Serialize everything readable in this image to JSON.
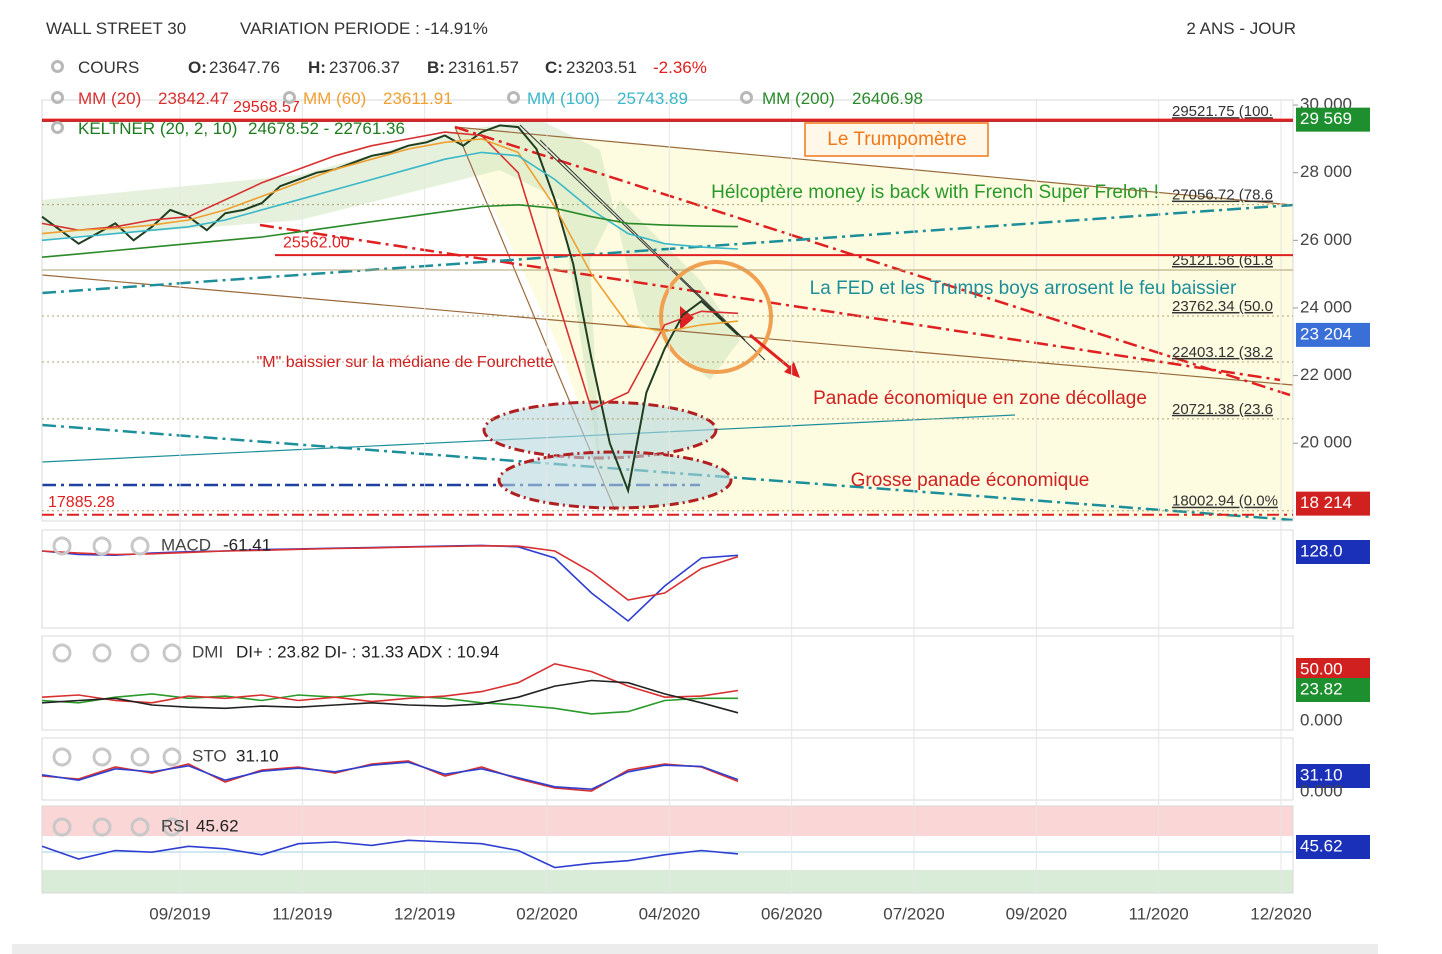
{
  "header": {
    "title": "WALL STREET 30",
    "variation": "VARIATION PERIODE : -14.91%",
    "period": "2 ANS - JOUR"
  },
  "chart_data": [
    {
      "type": "line",
      "cours_row": [
        {
          "key": "O:",
          "value": "23647.76"
        },
        {
          "key": "H:",
          "value": "23706.37"
        },
        {
          "key": "B:",
          "value": "23161.57"
        },
        {
          "key": "C:",
          "value": "23203.51"
        }
      ],
      "change": "-2.36%",
      "ma_values": [
        "23842.47",
        "23611.91",
        "25743.89",
        "26406.98"
      ],
      "keltner": {
        "name": "KELTNER (20, 2, 10)",
        "value": "24678.52 - 22761.36"
      },
      "series": [
        {
          "name": "COURS",
          "color": "#1f3d1f",
          "values": [
            26700,
            26300,
            25900,
            26200,
            26500,
            26000,
            26400,
            26900,
            26700,
            26300,
            26800,
            26900,
            27100,
            27600,
            27800,
            28000,
            28100,
            28300,
            28500,
            28600,
            28800,
            28900,
            29100,
            28800,
            29200,
            29400,
            29350,
            28700,
            27200,
            25300,
            22500,
            20000,
            18600,
            21500,
            22800,
            23800,
            24200,
            23700,
            23200
          ]
        },
        {
          "name": "MM (20)",
          "color": "#d83030",
          "values": [
            26500,
            26300,
            26400,
            26600,
            26700,
            27200,
            27700,
            28100,
            28500,
            28800,
            29000,
            29200,
            29100,
            28000,
            24500,
            21000,
            21500,
            23500,
            23900,
            23842
          ]
        },
        {
          "name": "MM (60)",
          "color": "#f0a030",
          "values": [
            26200,
            26300,
            26350,
            26450,
            26600,
            26900,
            27300,
            27700,
            28100,
            28400,
            28700,
            28900,
            29000,
            28600,
            27000,
            25000,
            23500,
            23300,
            23500,
            23612
          ]
        },
        {
          "name": "MM (100)",
          "color": "#3ab7c8",
          "values": [
            26000,
            26100,
            26200,
            26300,
            26400,
            26600,
            26900,
            27200,
            27500,
            27800,
            28100,
            28400,
            28600,
            28500,
            27800,
            26900,
            26200,
            25900,
            25800,
            25744
          ]
        },
        {
          "name": "MM (200)",
          "color": "#2a8a2a",
          "values": [
            25500,
            25600,
            25700,
            25800,
            25900,
            26000,
            26100,
            26250,
            26400,
            26550,
            26700,
            26850,
            27000,
            27050,
            26950,
            26700,
            26500,
            26450,
            26420,
            26407
          ]
        }
      ],
      "ylim": [
        17700,
        30150
      ],
      "yticks": [
        {
          "value": 30000,
          "label": "30 000"
        },
        {
          "value": 28000,
          "label": "28 000"
        },
        {
          "value": 26000,
          "label": "26 000"
        },
        {
          "value": 24000,
          "label": "24 000"
        },
        {
          "value": 22000,
          "label": "22 000"
        },
        {
          "value": 20000,
          "label": "20 000"
        }
      ],
      "xticks": [
        "09/2019",
        "11/2019",
        "12/2019",
        "02/2020",
        "04/2020",
        "06/2020",
        "07/2020",
        "09/2020",
        "11/2020",
        "12/2020"
      ],
      "fib_levels": [
        {
          "value": 29521.75,
          "label": "29521.75 (100."
        },
        {
          "value": 27056.72,
          "label": "27056.72 (78.6"
        },
        {
          "value": 25121.56,
          "label": "25121.56 (61.8"
        },
        {
          "value": 23762.34,
          "label": "23762.34 (50.0"
        },
        {
          "value": 22403.12,
          "label": "22403.12 (38.2"
        },
        {
          "value": 20721.38,
          "label": "20721.38 (23.6"
        },
        {
          "value": 18002.94,
          "label": "18002.94 (0.0%"
        }
      ],
      "price_marks": [
        {
          "value": 29568.57,
          "label": "29568.57"
        },
        {
          "value": 25562.0,
          "label": "25562.00"
        },
        {
          "value": 17885.28,
          "label": "17885.28"
        }
      ],
      "badges": [
        {
          "value": 29569,
          "label": "29 569",
          "color": "#1e8f2e"
        },
        {
          "value": 23204,
          "label": "23 204",
          "color": "#3a6fd8"
        },
        {
          "value": 18214,
          "label": "18 214",
          "color": "#d02020"
        }
      ],
      "annotations": [
        {
          "text": "Le Trumpomètre",
          "color": "#f07818"
        },
        {
          "text": "Hélcoptère money is back with French Super Frelon !",
          "color": "#2a9a2a"
        },
        {
          "text": "La FED et les Trumps boys arrosent le feu baissier",
          "color": "#1d8f9a"
        },
        {
          "text": "\"M\" baissier sur la médiane de Fourchette",
          "color": "#d02020"
        },
        {
          "text": "Panade économique en zone décollage",
          "color": "#d02020"
        },
        {
          "text": "Grosse panade économique",
          "color": "#d02020"
        }
      ]
    },
    {
      "type": "line",
      "name": "MACD",
      "readout": "-61.41",
      "ylim": [
        -1100,
        300
      ],
      "series": [
        {
          "color": "#2f3fd0",
          "values": [
            0,
            -50,
            -60,
            -30,
            -10,
            0,
            20,
            30,
            40,
            50,
            60,
            70,
            80,
            60,
            -100,
            -600,
            -1000,
            -500,
            -100,
            -61
          ]
        },
        {
          "color": "#d83030",
          "values": [
            0,
            -30,
            -50,
            -40,
            -20,
            0,
            10,
            25,
            35,
            45,
            55,
            65,
            75,
            70,
            0,
            -300,
            -700,
            -600,
            -250,
            -80
          ]
        }
      ],
      "badges": [
        {
          "label": "128.0",
          "color": "#1a30b8"
        }
      ]
    },
    {
      "type": "line",
      "name": "DMI",
      "readout": "DI+ : 23.82 DI- : 31.33 ADX : 10.94",
      "ylim": [
        0,
        80
      ],
      "series": [
        {
          "color": "#2a9a2a",
          "values": [
            22,
            20,
            25,
            28,
            24,
            26,
            22,
            27,
            25,
            28,
            26,
            24,
            20,
            18,
            15,
            10,
            12,
            22,
            24,
            24
          ]
        },
        {
          "color": "#d83030",
          "values": [
            25,
            27,
            22,
            20,
            26,
            24,
            27,
            22,
            25,
            21,
            24,
            26,
            30,
            38,
            55,
            48,
            35,
            25,
            26,
            31
          ]
        },
        {
          "color": "#222222",
          "values": [
            20,
            22,
            24,
            18,
            16,
            15,
            17,
            16,
            18,
            20,
            18,
            17,
            19,
            25,
            35,
            40,
            38,
            28,
            20,
            11
          ]
        }
      ],
      "badges": [
        {
          "label": "50.00",
          "color": "#d02020"
        },
        {
          "label": "23.82",
          "color": "#1e8f2e"
        },
        {
          "label": "0.000"
        }
      ]
    },
    {
      "type": "line",
      "name": "STO",
      "readout": "31.10",
      "ylim": [
        0,
        100
      ],
      "series": [
        {
          "color": "#d83030",
          "values": [
            40,
            35,
            55,
            45,
            60,
            30,
            50,
            55,
            45,
            60,
            65,
            40,
            55,
            35,
            20,
            15,
            50,
            60,
            55,
            31
          ]
        },
        {
          "color": "#2f3fd0",
          "values": [
            42,
            33,
            52,
            47,
            57,
            33,
            48,
            53,
            47,
            58,
            63,
            43,
            52,
            37,
            22,
            18,
            47,
            58,
            56,
            34
          ]
        }
      ],
      "badges": [
        {
          "label": "31.10",
          "color": "#1a30b8"
        },
        {
          "label": "0.000"
        }
      ]
    },
    {
      "type": "line",
      "name": "RSI",
      "readout": "45.62",
      "ylim": [
        0,
        100
      ],
      "series": [
        {
          "color": "#2f3fd0",
          "values": [
            55,
            40,
            50,
            48,
            55,
            52,
            45,
            58,
            60,
            56,
            62,
            60,
            58,
            50,
            30,
            35,
            38,
            45,
            50,
            46
          ]
        }
      ],
      "badges": [
        {
          "label": "45.62",
          "color": "#1a30b8"
        }
      ]
    }
  ]
}
